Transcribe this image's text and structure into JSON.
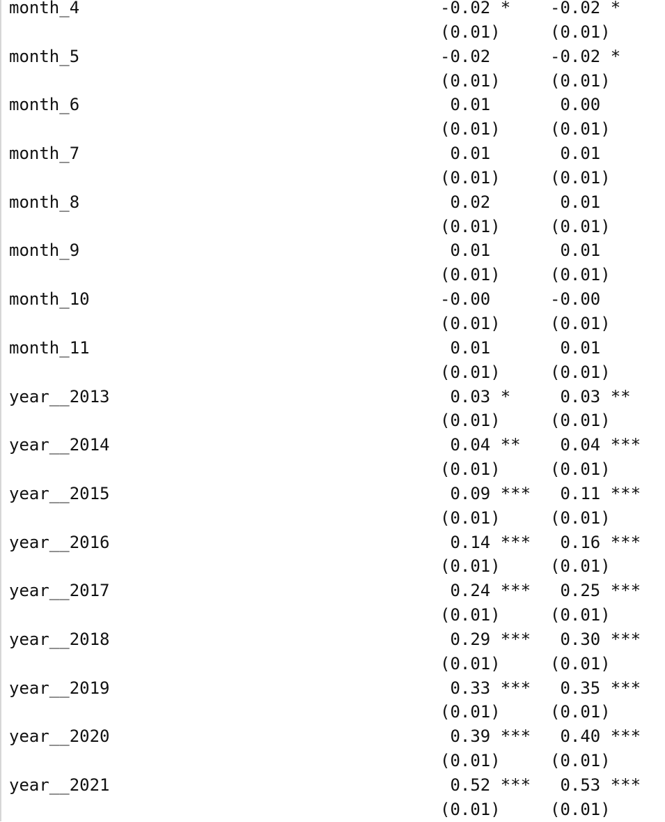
{
  "regression_table": {
    "rows": [
      {
        "term": "month_4",
        "coef1": "-0.02 *",
        "se1": "(0.01)",
        "coef2": "-0.02 *",
        "se2": "(0.01)"
      },
      {
        "term": "month_5",
        "coef1": "-0.02",
        "se1": "(0.01)",
        "coef2": "-0.02 *",
        "se2": "(0.01)"
      },
      {
        "term": "month_6",
        "coef1": " 0.01",
        "se1": "(0.01)",
        "coef2": " 0.00",
        "se2": "(0.01)"
      },
      {
        "term": "month_7",
        "coef1": " 0.01",
        "se1": "(0.01)",
        "coef2": " 0.01",
        "se2": "(0.01)"
      },
      {
        "term": "month_8",
        "coef1": " 0.02",
        "se1": "(0.01)",
        "coef2": " 0.01",
        "se2": "(0.01)"
      },
      {
        "term": "month_9",
        "coef1": " 0.01",
        "se1": "(0.01)",
        "coef2": " 0.01",
        "se2": "(0.01)"
      },
      {
        "term": "month_10",
        "coef1": "-0.00",
        "se1": "(0.01)",
        "coef2": "-0.00",
        "se2": "(0.01)"
      },
      {
        "term": "month_11",
        "coef1": " 0.01",
        "se1": "(0.01)",
        "coef2": " 0.01",
        "se2": "(0.01)"
      },
      {
        "term": "year__2013",
        "coef1": " 0.03 *",
        "se1": "(0.01)",
        "coef2": " 0.03 **",
        "se2": "(0.01)"
      },
      {
        "term": "year__2014",
        "coef1": " 0.04 **",
        "se1": "(0.01)",
        "coef2": " 0.04 ***",
        "se2": "(0.01)"
      },
      {
        "term": "year__2015",
        "coef1": " 0.09 ***",
        "se1": "(0.01)",
        "coef2": " 0.11 ***",
        "se2": "(0.01)"
      },
      {
        "term": "year__2016",
        "coef1": " 0.14 ***",
        "se1": "(0.01)",
        "coef2": " 0.16 ***",
        "se2": "(0.01)"
      },
      {
        "term": "year__2017",
        "coef1": " 0.24 ***",
        "se1": "(0.01)",
        "coef2": " 0.25 ***",
        "se2": "(0.01)"
      },
      {
        "term": "year__2018",
        "coef1": " 0.29 ***",
        "se1": "(0.01)",
        "coef2": " 0.30 ***",
        "se2": "(0.01)"
      },
      {
        "term": "year__2019",
        "coef1": " 0.33 ***",
        "se1": "(0.01)",
        "coef2": " 0.35 ***",
        "se2": "(0.01)"
      },
      {
        "term": "year__2020",
        "coef1": " 0.39 ***",
        "se1": "(0.01)",
        "coef2": " 0.40 ***",
        "se2": "(0.01)"
      },
      {
        "term": "year__2021",
        "coef1": " 0.52 ***",
        "se1": "(0.01)",
        "coef2": " 0.53 ***",
        "se2": "(0.01)"
      }
    ]
  }
}
